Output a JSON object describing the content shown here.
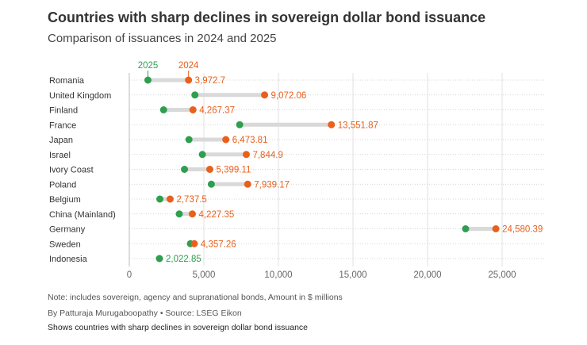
{
  "header": {
    "title": "Countries with sharp declines in sovereign dollar bond issuance",
    "subtitle": "Comparison of issuances in 2024 and 2025"
  },
  "footer": {
    "note": "Note: includes sovereign, agency and supranational bonds, Amount in $ millions",
    "byline": "By Patturaja Murugaboopathy • Source: LSEG Eikon",
    "description": "Shows countries with sharp declines in sovereign dollar bond issuance"
  },
  "chart_data": {
    "type": "dumbbell",
    "title": "Countries with sharp declines in sovereign dollar bond issuance",
    "subtitle": "Comparison of issuances in 2024 and 2025",
    "xlabel": "",
    "ylabel": "",
    "xlim": [
      0,
      28000
    ],
    "xticks": [
      0,
      5000,
      10000,
      15000,
      20000,
      25000
    ],
    "xtick_labels": [
      "0",
      "5,000",
      "10,000",
      "15,000",
      "20,000",
      "25,000"
    ],
    "grid": true,
    "legend_placement": "top",
    "categories": [
      "Romania",
      "United Kingdom",
      "Finland",
      "France",
      "Japan",
      "Israel",
      "Ivory Coast",
      "Poland",
      "Belgium",
      "China (Mainland)",
      "Germany",
      "Sweden",
      "Indonesia"
    ],
    "series": [
      {
        "name": "2025",
        "color": "#2e9e4f",
        "values": [
          1250,
          4400,
          2300,
          7400,
          4000,
          4900,
          3700,
          5500,
          2050,
          3350,
          22550,
          4100,
          2022.85
        ]
      },
      {
        "name": "2024",
        "color": "#e8601c",
        "values": [
          3972.7,
          9072.06,
          4267.37,
          13551.87,
          6473.81,
          7844.9,
          5399.11,
          7939.17,
          2737.5,
          4227.35,
          24580.39,
          4357.26,
          null
        ]
      }
    ],
    "data_labels": [
      "3,972.7",
      "9,072.06",
      "4,267.37",
      "13,551.87",
      "6,473.81",
      "7,844.9",
      "5,399.11",
      "7,939.17",
      "2,737.5",
      "4,227.35",
      "24,580.39",
      "4,357.26",
      "2,022.85"
    ],
    "label_colors": {
      "orange": "#e8601c",
      "green": "#2e9e4f"
    }
  }
}
